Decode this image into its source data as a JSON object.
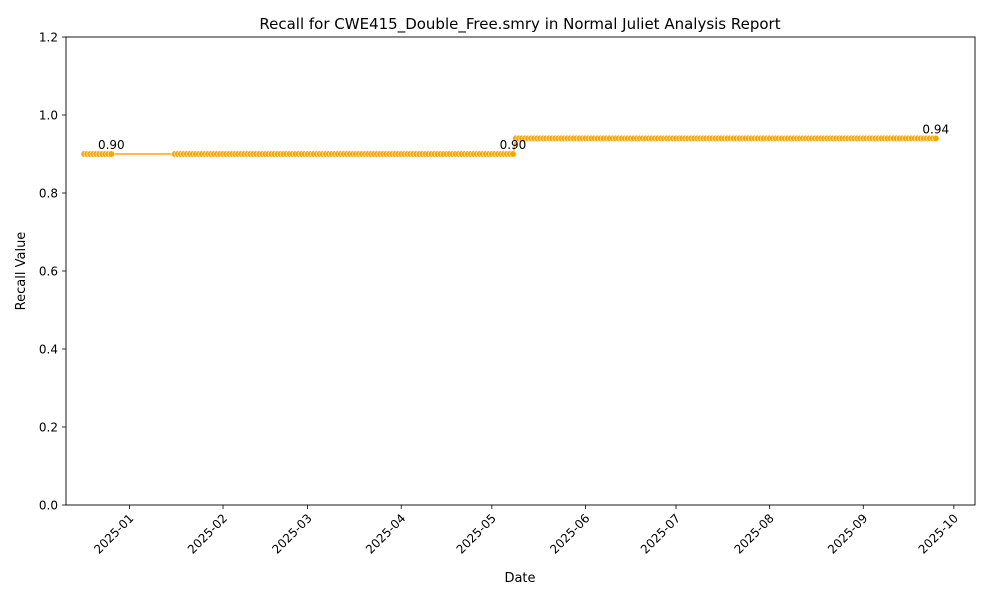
{
  "chart_data": {
    "type": "line",
    "title": "Recall for CWE415_Double_Free.smry in Normal Juliet Analysis Report",
    "xlabel": "Date",
    "ylabel": "Recall Value",
    "xlim": [
      "2024-12-11",
      "2025-10-08"
    ],
    "ylim": [
      0,
      1.2
    ],
    "yticks": [
      0.0,
      0.2,
      0.4,
      0.6,
      0.8,
      1.0,
      1.2
    ],
    "ytick_labels": [
      "0.0",
      "0.2",
      "0.4",
      "0.6",
      "0.8",
      "1.0",
      "1.2"
    ],
    "xticks": [
      "2025-01-01",
      "2025-02-01",
      "2025-03-01",
      "2025-04-01",
      "2025-05-01",
      "2025-06-01",
      "2025-07-01",
      "2025-08-01",
      "2025-09-01",
      "2025-10-01"
    ],
    "xtick_labels": [
      "2025-01",
      "2025-02",
      "2025-03",
      "2025-04",
      "2025-05",
      "2025-06",
      "2025-07",
      "2025-08",
      "2025-09",
      "2025-10"
    ],
    "grid": false,
    "series": [
      {
        "color": "#FFA500",
        "segments": [
          {
            "start": "2024-12-17",
            "end": "2024-12-26",
            "value": 0.9
          },
          {
            "start": "2025-01-16",
            "end": "2025-05-08",
            "value": 0.9
          },
          {
            "start": "2025-05-09",
            "end": "2025-09-25",
            "value": 0.94
          }
        ]
      }
    ],
    "data_labels": [
      {
        "date": "2024-12-26",
        "text": "0.90"
      },
      {
        "date": "2025-05-08",
        "text": "0.90"
      },
      {
        "date": "2025-09-25",
        "text": "0.94"
      }
    ]
  }
}
